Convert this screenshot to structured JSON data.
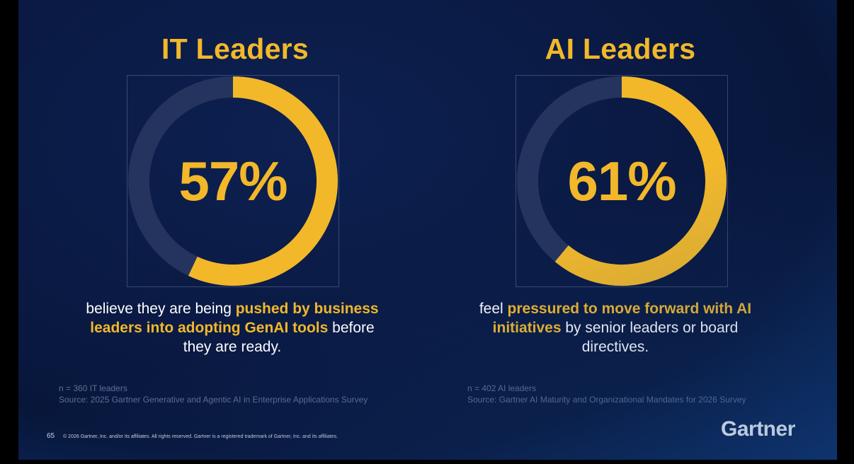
{
  "panels": [
    {
      "title": "IT Leaders",
      "percent_label": "57%",
      "desc_parts": [
        {
          "text": "believe they are being ",
          "highlight": false
        },
        {
          "text": "pushed by business leaders into adopting GenAI tools",
          "highlight": true
        },
        {
          "text": "  before they are ready.",
          "highlight": false
        }
      ],
      "sample": "n = 360 IT leaders",
      "source": "Source: 2025 Gartner Generative and Agentic AI in Enterprise Applications Survey"
    },
    {
      "title": "AI Leaders",
      "percent_label": "61%",
      "desc_parts": [
        {
          "text": "feel ",
          "highlight": false
        },
        {
          "text": "pressured to move forward with AI initiatives",
          "highlight": true
        },
        {
          "text": " by senior leaders or board directives.",
          "highlight": false
        }
      ],
      "sample": "n = 402 AI leaders",
      "source": "Source: Gartner AI Maturity and Organizational Mandates for 2026 Survey"
    }
  ],
  "footer": {
    "page_number": "65",
    "copyright": "© 2026 Gartner, Inc. and/or its affiliates. All rights reserved. Gartner is a registered trademark of Gartner, Inc. and its affiliates."
  },
  "logo": "Gartner",
  "colors": {
    "accent": "#f2b82a",
    "track": "#25345e",
    "background": "#0a1a44"
  },
  "chart_data": [
    {
      "type": "pie",
      "title": "IT Leaders",
      "categories": [
        "",
        ""
      ],
      "values": [
        57,
        43
      ],
      "center_label": "57%"
    },
    {
      "type": "pie",
      "title": "AI Leaders",
      "categories": [
        "",
        ""
      ],
      "values": [
        61,
        39
      ],
      "center_label": "61%"
    }
  ]
}
